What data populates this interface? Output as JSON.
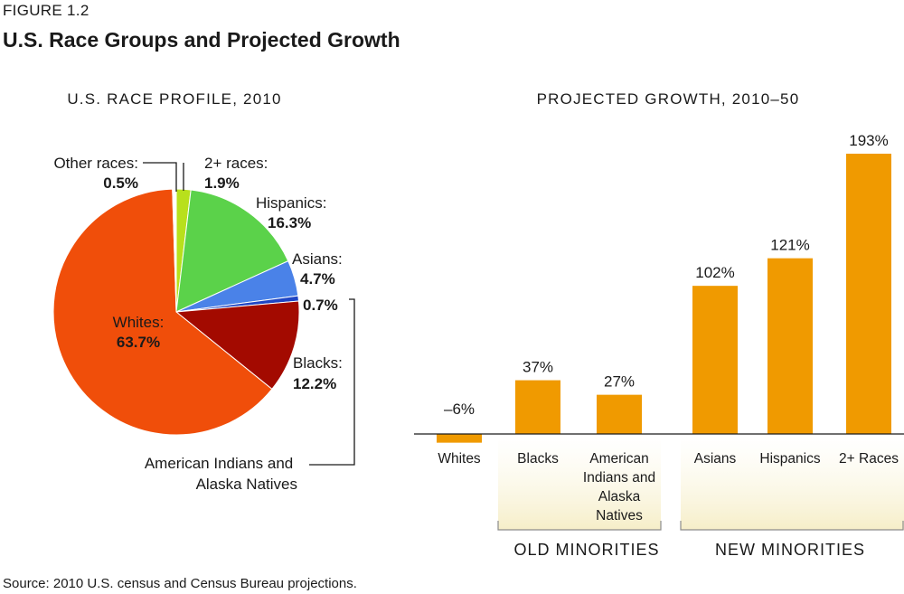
{
  "figure": {
    "label": "FIGURE 1.2",
    "title": "U.S. Race Groups and Projected Growth",
    "source": "Source: 2010 U.S. census and Census Bureau projections."
  },
  "chart_data": [
    {
      "type": "pie",
      "title": "U.S. RACE PROFILE, 2010",
      "slices": [
        {
          "label": "2+ races:",
          "value": 1.9,
          "value_label": "1.9%",
          "color": "#b8e01c"
        },
        {
          "label": "Hispanics:",
          "value": 16.3,
          "value_label": "16.3%",
          "color": "#5bd24a"
        },
        {
          "label": "Asians:",
          "value": 4.7,
          "value_label": "4.7%",
          "color": "#4a82e8"
        },
        {
          "label": "American Indians and Alaska Natives",
          "value": 0.7,
          "value_label": "0.7%",
          "color": "#1f45c4"
        },
        {
          "label": "Blacks:",
          "value": 12.2,
          "value_label": "12.2%",
          "color": "#a30a00"
        },
        {
          "label": "Whites:",
          "value": 63.7,
          "value_label": "63.7%",
          "color": "#f04e0a"
        },
        {
          "label": "Other races:",
          "value": 0.5,
          "value_label": "0.5%",
          "color": "#ffffff"
        }
      ]
    },
    {
      "type": "bar",
      "title": "PROJECTED GROWTH, 2010–50",
      "color": "#f09a00",
      "categories": [
        "Whites",
        "Blacks",
        "American Indians and Alaska Natives",
        "Asians",
        "Hispanics",
        "2+ Races"
      ],
      "values": [
        -6,
        37,
        27,
        102,
        121,
        193
      ],
      "value_labels": [
        "–6%",
        "37%",
        "27%",
        "102%",
        "121%",
        "193%"
      ],
      "groups": [
        {
          "label": "OLD MINORITIES",
          "categories": [
            "Blacks",
            "American Indians and Alaska Natives"
          ]
        },
        {
          "label": "NEW MINORITIES",
          "categories": [
            "Asians",
            "Hispanics",
            "2+ Races"
          ]
        }
      ]
    }
  ]
}
